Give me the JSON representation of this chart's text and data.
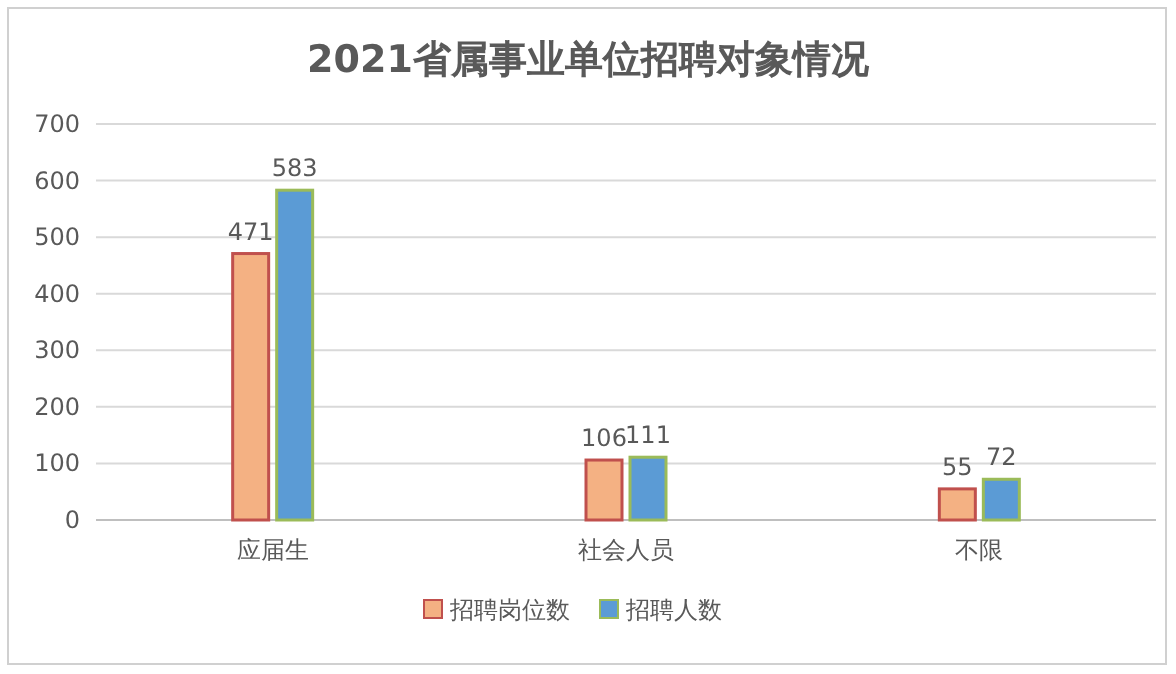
{
  "chart_data": {
    "type": "bar",
    "title": "2021省属事业单位招聘对象情况",
    "categories": [
      "应届生",
      "社会人员",
      "不限"
    ],
    "series": [
      {
        "name": "招聘岗位数",
        "color": "#f4b183",
        "values": [
          471,
          106,
          55
        ]
      },
      {
        "name": "招聘人数",
        "color": "#5b9bd5",
        "values": [
          583,
          111,
          72
        ]
      }
    ],
    "ylim": [
      0,
      700
    ],
    "yticks": [
      0,
      100,
      200,
      300,
      400,
      500,
      600,
      700
    ],
    "grid": "y",
    "legend": "bottom",
    "data_labels": true
  }
}
